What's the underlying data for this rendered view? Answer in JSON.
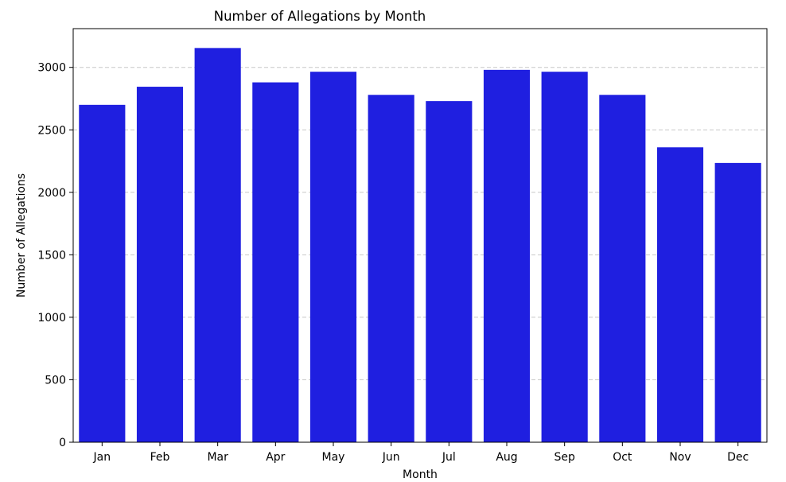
{
  "chart_data": {
    "type": "bar",
    "title": "Number of Allegations by Month",
    "xlabel": "Month",
    "ylabel": "Number of Allegations",
    "categories": [
      "Jan",
      "Feb",
      "Mar",
      "Apr",
      "May",
      "Jun",
      "Jul",
      "Aug",
      "Sep",
      "Oct",
      "Nov",
      "Dec"
    ],
    "values": [
      2700,
      2845,
      3155,
      2880,
      2965,
      2780,
      2730,
      2980,
      2965,
      2780,
      2360,
      2235
    ],
    "ylim": [
      0,
      3310
    ],
    "yticks": [
      0,
      500,
      1000,
      1500,
      2000,
      2500,
      3000
    ],
    "grid": "y-dashed",
    "bar_color": "#1f1fe0",
    "grid_color": "#c8c8c8"
  }
}
